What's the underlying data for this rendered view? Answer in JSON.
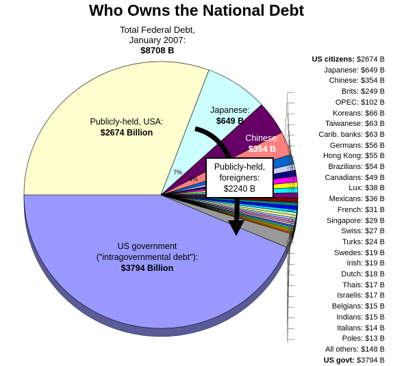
{
  "title": "Who Owns the National Debt",
  "total": {
    "line1": "Total Federal Debt,",
    "line2": "January 2007:",
    "value": "$8708 B"
  },
  "callout": {
    "line1": "Publicly-held,",
    "line2": "foreigners:",
    "value": "$2240 B"
  },
  "slice_labels": {
    "us_public": {
      "line1": "Publicly-held, USA:",
      "value": "$2674 Billion"
    },
    "japan": {
      "line1": "Japanese:",
      "value": "$649 B"
    },
    "china": {
      "line1": "Chinese:",
      "value": "$354 B"
    },
    "us_govt": {
      "line1": "US government",
      "line2": "(\"intragovernmental debt\"):",
      "value": "$3794 Billion"
    },
    "pct_japan": "7%",
    "pct_china": "4%"
  },
  "legend": [
    {
      "name": "US citizens:",
      "value": "$2674 B",
      "bold": true
    },
    {
      "name": "Japanese:",
      "value": "$649 B"
    },
    {
      "name": "Chinese:",
      "value": "$354 B"
    },
    {
      "name": "Brits:",
      "value": "$249 B"
    },
    {
      "name": "OPEC:",
      "value": "$102 B"
    },
    {
      "name": "Koreans:",
      "value": "$66 B"
    },
    {
      "name": "Taiwanese:",
      "value": "$63 B"
    },
    {
      "name": "Carib. banks:",
      "value": "$63 B"
    },
    {
      "name": "Germans:",
      "value": "$56 B"
    },
    {
      "name": "Hong Kong:",
      "value": "$55 B"
    },
    {
      "name": "Brazilians:",
      "value": "$54 B"
    },
    {
      "name": "Canadians:",
      "value": "$49 B"
    },
    {
      "name": "Lux:",
      "value": "$38 B"
    },
    {
      "name": "Mexicans:",
      "value": "$36 B"
    },
    {
      "name": "French:",
      "value": "$31 B"
    },
    {
      "name": "Singapore:",
      "value": "$29 B"
    },
    {
      "name": "Swiss:",
      "value": "$27 B"
    },
    {
      "name": "Turks:",
      "value": "$24 B"
    },
    {
      "name": "Swedes:",
      "value": "$19 B"
    },
    {
      "name": "Irish:",
      "value": "$19 B"
    },
    {
      "name": "Dutch:",
      "value": "$18 B"
    },
    {
      "name": "Thais:",
      "value": "$17 B"
    },
    {
      "name": "Israelis:",
      "value": "$17 B"
    },
    {
      "name": "Belgians:",
      "value": "$15 B"
    },
    {
      "name": "Indians:",
      "value": "$15 B"
    },
    {
      "name": "Italians:",
      "value": "$14 B"
    },
    {
      "name": "Poles:",
      "value": "$13 B"
    },
    {
      "name": "All others:",
      "value": "$148 B"
    },
    {
      "name": "US govt:",
      "value": "$3794 B",
      "bold": true
    }
  ],
  "chart_data": {
    "type": "pie",
    "title": "Who Owns the National Debt",
    "unit": "$B",
    "slices": [
      {
        "label": "US citizens",
        "value": 2674,
        "color": "#FFFFD0"
      },
      {
        "label": "Japanese",
        "value": 649,
        "color": "#CCFFFF"
      },
      {
        "label": "Chinese",
        "value": 354,
        "color": "#660066"
      },
      {
        "label": "Brits",
        "value": 249,
        "color": "#FF8080"
      },
      {
        "label": "OPEC",
        "value": 102,
        "color": "#0066CC"
      },
      {
        "label": "Koreans",
        "value": 66,
        "color": "#CCCCFF"
      },
      {
        "label": "Taiwanese",
        "value": 63,
        "color": "#000080"
      },
      {
        "label": "Carib. banks",
        "value": 63,
        "color": "#FF00FF"
      },
      {
        "label": "Germans",
        "value": 56,
        "color": "#FFFF00"
      },
      {
        "label": "Hong Kong",
        "value": 55,
        "color": "#00FFFF"
      },
      {
        "label": "Brazilians",
        "value": 54,
        "color": "#800080"
      },
      {
        "label": "Canadians",
        "value": 49,
        "color": "#800000"
      },
      {
        "label": "Lux",
        "value": 38,
        "color": "#008080"
      },
      {
        "label": "Mexicans",
        "value": 36,
        "color": "#0000FF"
      },
      {
        "label": "French",
        "value": 31,
        "color": "#00CCFF"
      },
      {
        "label": "Singapore",
        "value": 29,
        "color": "#CCFFCC"
      },
      {
        "label": "Swiss",
        "value": 27,
        "color": "#FFFF99"
      },
      {
        "label": "Turks",
        "value": 24,
        "color": "#99CCFF"
      },
      {
        "label": "Swedes",
        "value": 19,
        "color": "#FF99CC"
      },
      {
        "label": "Irish",
        "value": 19,
        "color": "#CC99FF"
      },
      {
        "label": "Dutch",
        "value": 18,
        "color": "#FFCC99"
      },
      {
        "label": "Thais",
        "value": 17,
        "color": "#3366FF"
      },
      {
        "label": "Israelis",
        "value": 17,
        "color": "#33CCCC"
      },
      {
        "label": "Belgians",
        "value": 15,
        "color": "#99CC00"
      },
      {
        "label": "Indians",
        "value": 15,
        "color": "#FFCC00"
      },
      {
        "label": "Italians",
        "value": 14,
        "color": "#FF9900"
      },
      {
        "label": "Poles",
        "value": 13,
        "color": "#FF6600"
      },
      {
        "label": "All others",
        "value": 148,
        "color": "#999999"
      },
      {
        "label": "US govt",
        "value": 3794,
        "color": "#9999FF"
      }
    ]
  }
}
